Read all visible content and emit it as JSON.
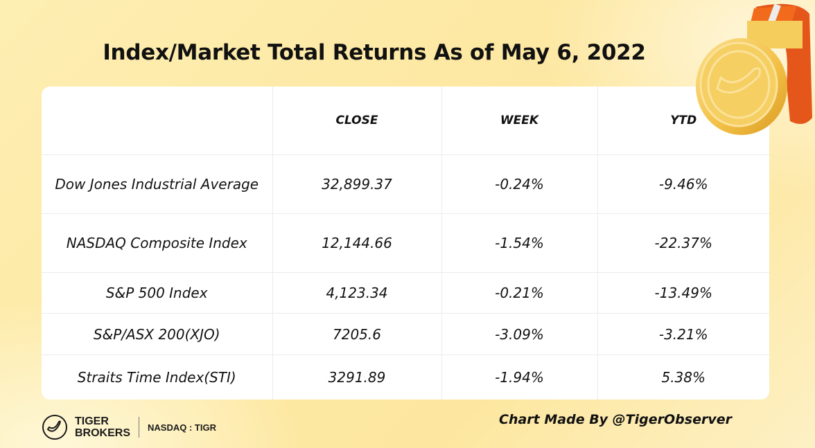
{
  "title": "Index/Market Total Returns As of May 6, 2022",
  "chart_data": {
    "type": "table",
    "title": "Index/Market Total Returns As of May 6, 2022",
    "columns": [
      "",
      "CLOSE",
      "WEEK",
      "YTD"
    ],
    "rows": [
      {
        "name": "Dow Jones Industrial Average",
        "close": "32,899.37",
        "week": "-0.24%",
        "ytd": "-9.46%"
      },
      {
        "name": "NASDAQ Composite Index",
        "close": "12,144.66",
        "week": "-1.54%",
        "ytd": "-22.37%"
      },
      {
        "name": "S&P 500 Index",
        "close": "4,123.34",
        "week": "-0.21%",
        "ytd": "-13.49%"
      },
      {
        "name": "S&P/ASX 200(XJO)",
        "close": "7205.6",
        "week": "-3.09%",
        "ytd": "-3.21%"
      },
      {
        "name": "Straits Time Index(STI)",
        "close": "3291.89",
        "week": "-1.94%",
        "ytd": "5.38%"
      }
    ]
  },
  "footer": {
    "brand_line1": "TIGER",
    "brand_line2": "BROKERS",
    "ticker": "NASDAQ : TIGR",
    "credit": "Chart Made By @TigerObserver"
  },
  "icons": {
    "logo": "tiger-tail-icon",
    "decoration": "gold-medal-icon"
  },
  "colors": {
    "background": "#fde9a4",
    "ribbon": "#f26a1b",
    "medal": "#f5c44e"
  }
}
